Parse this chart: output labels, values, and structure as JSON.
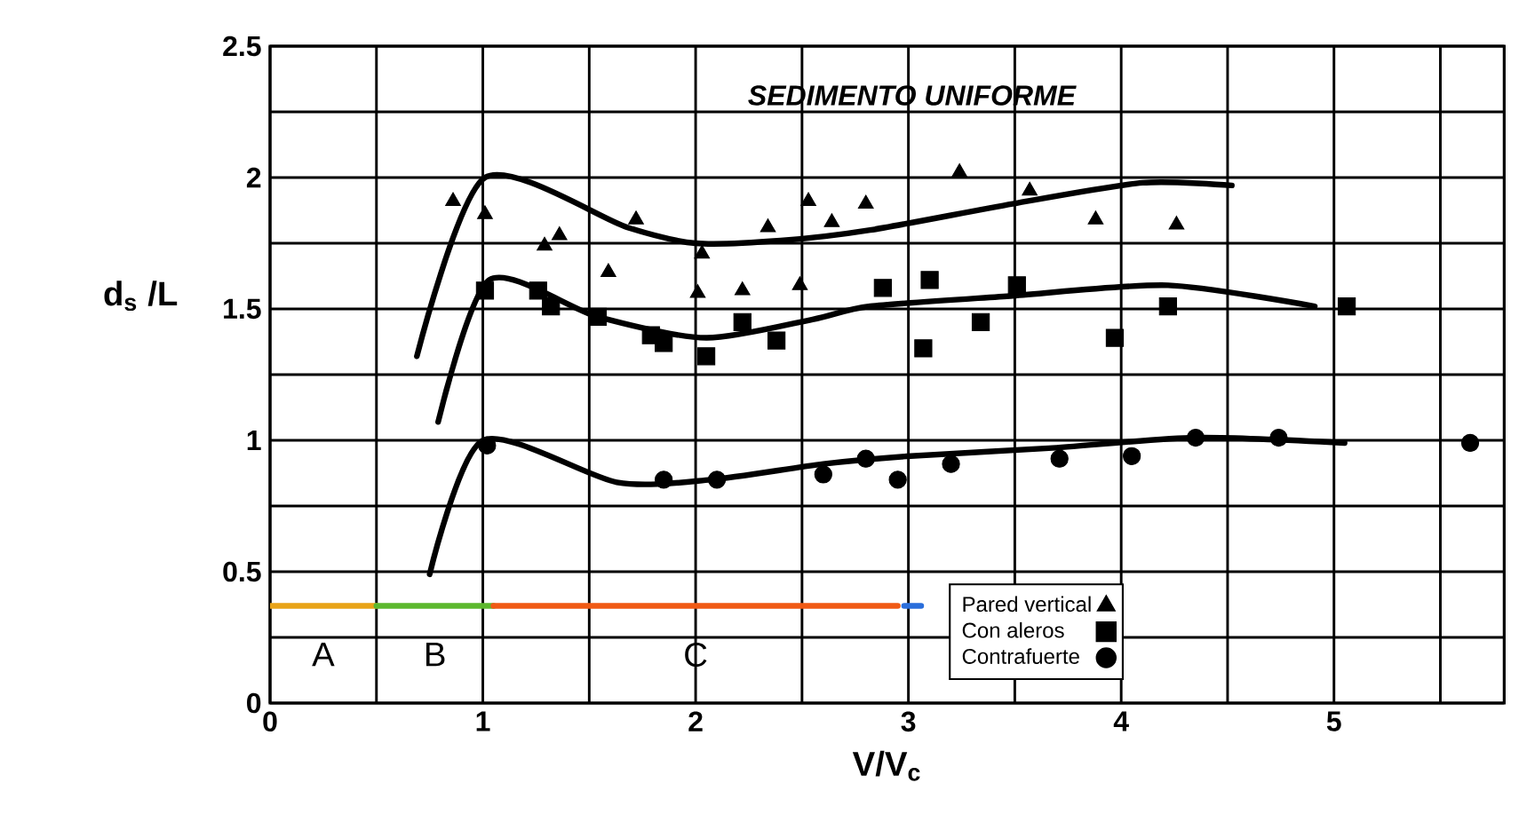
{
  "chart_data": {
    "type": "scatter",
    "title": "SEDIMENTO UNIFORME",
    "xlabel": "V/V$_{c}$",
    "ylabel": "d$_{s}$ /L",
    "xlim": [
      0,
      5.8
    ],
    "ylim": [
      0,
      2.5
    ],
    "xticks": [
      0,
      {
        "value": 0.5,
        "label": null
      },
      1,
      {
        "value": 1.5,
        "label": null
      },
      2,
      {
        "value": 2.5,
        "label": null
      },
      3,
      {
        "value": 3.5,
        "label": null
      },
      4,
      {
        "value": 4.5,
        "label": null
      },
      5,
      {
        "value": 5.5,
        "label": null
      }
    ],
    "yticks": [
      0,
      {
        "value": 0.25,
        "label": null
      },
      0.5,
      {
        "value": 0.75,
        "label": null
      },
      1,
      {
        "value": 1.25,
        "label": null
      },
      1.5,
      {
        "value": 1.75,
        "label": null
      },
      2,
      {
        "value": 2.25,
        "label": null
      },
      2.5
    ],
    "grid": true,
    "legend": "bottom right",
    "series": [
      {
        "type": "line",
        "marker": "none",
        "color": "#000000",
        "x": [
          0.69,
          1.01,
          1.68,
          2.0,
          2.4,
          2.82,
          3.49,
          4.1,
          4.52
        ],
        "values": [
          1.32,
          2.0,
          1.81,
          1.75,
          1.76,
          1.8,
          1.9,
          1.98,
          1.97
        ]
      },
      {
        "type": "line",
        "marker": "none",
        "color": "#000000",
        "x": [
          0.79,
          1.03,
          1.54,
          2.05,
          2.55,
          2.82,
          3.49,
          4.22,
          4.91
        ],
        "values": [
          1.07,
          1.61,
          1.47,
          1.39,
          1.46,
          1.51,
          1.55,
          1.59,
          1.51
        ]
      },
      {
        "type": "line",
        "marker": "none",
        "color": "#000000",
        "x": [
          0.75,
          1.0,
          1.63,
          2.07,
          2.6,
          3.01,
          3.66,
          4.35,
          5.05
        ],
        "values": [
          0.49,
          1.0,
          0.84,
          0.85,
          0.91,
          0.94,
          0.97,
          1.01,
          0.99
        ]
      },
      {
        "type": "line",
        "marker": "none",
        "color": "#e8a317",
        "x": [
          0,
          0.5
        ],
        "values": [
          0.37,
          0.37
        ]
      },
      {
        "type": "line",
        "marker": "none",
        "color": "#5cb82e",
        "x": [
          0.5,
          1.05
        ],
        "values": [
          0.37,
          0.37
        ]
      },
      {
        "type": "line",
        "marker": "none",
        "color": "#f05a14",
        "x": [
          1.05,
          2.95
        ],
        "values": [
          0.37,
          0.37
        ]
      },
      {
        "type": "line",
        "marker": "none",
        "color": "#2a6edb",
        "x": [
          2.98,
          3.06
        ],
        "values": [
          0.37,
          0.37
        ]
      },
      {
        "name": "Pared vertical",
        "marker": "triangle",
        "color": "#000000",
        "x": [
          0.86,
          1.01,
          1.29,
          1.36,
          1.59,
          1.72,
          2.01,
          2.03,
          2.22,
          2.34,
          2.49,
          2.53,
          2.64,
          2.8,
          3.24,
          3.57,
          3.88,
          4.26
        ],
        "values": [
          1.91,
          1.86,
          1.74,
          1.78,
          1.64,
          1.84,
          1.56,
          1.71,
          1.57,
          1.81,
          1.59,
          1.91,
          1.83,
          1.9,
          2.02,
          1.95,
          1.84,
          1.82
        ]
      },
      {
        "name": "Con aleros",
        "marker": "square",
        "color": "#000000",
        "x": [
          1.01,
          1.26,
          1.32,
          1.54,
          1.79,
          1.85,
          2.05,
          2.22,
          2.38,
          2.88,
          3.1,
          3.07,
          3.34,
          3.51,
          3.97,
          4.22,
          5.06
        ],
        "values": [
          1.57,
          1.57,
          1.51,
          1.47,
          1.4,
          1.37,
          1.32,
          1.45,
          1.38,
          1.58,
          1.61,
          1.35,
          1.45,
          1.59,
          1.39,
          1.51,
          1.51
        ]
      },
      {
        "name": "Contrafuerte",
        "marker": "circle",
        "color": "#000000",
        "x": [
          1.02,
          1.85,
          2.1,
          2.6,
          2.8,
          2.95,
          3.2,
          3.71,
          4.05,
          4.35,
          4.74,
          5.64
        ],
        "values": [
          0.98,
          0.85,
          0.85,
          0.87,
          0.93,
          0.85,
          0.91,
          0.93,
          0.94,
          1.01,
          1.01,
          0.99
        ]
      }
    ],
    "annotations": [
      "A",
      "B",
      "C"
    ]
  }
}
